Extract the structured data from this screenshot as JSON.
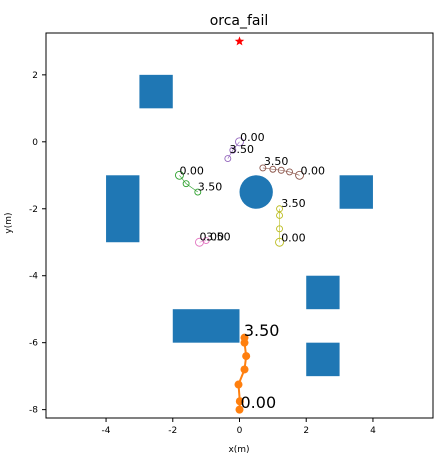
{
  "chart_data": {
    "type": "scatter",
    "title": "orca_fail",
    "xlabel": "x(m)",
    "ylabel": "y(m)",
    "xlim": [
      -5.8,
      5.8
    ],
    "ylim": [
      -8.25,
      3.25
    ],
    "x_ticks": [
      -4,
      -2,
      0,
      2,
      4
    ],
    "y_ticks": [
      2,
      0,
      -2,
      -4,
      -6,
      -8
    ],
    "grid": false,
    "goal": {
      "x": 0,
      "y": 3,
      "color": "#ff0000",
      "marker": "star"
    },
    "obstacles": [
      {
        "shape": "rect",
        "x": -3,
        "y": 1,
        "w": 1,
        "h": 1,
        "color": "#1f77b4"
      },
      {
        "shape": "rect",
        "x": -4,
        "y": -3,
        "w": 1,
        "h": 2,
        "color": "#1f77b4"
      },
      {
        "shape": "rect",
        "x": 3,
        "y": -2,
        "w": 1,
        "h": 1,
        "color": "#1f77b4"
      },
      {
        "shape": "rect",
        "x": -2,
        "y": -6,
        "w": 2,
        "h": 1,
        "color": "#1f77b4"
      },
      {
        "shape": "rect",
        "x": 2,
        "y": -5,
        "w": 1,
        "h": 1,
        "color": "#1f77b4"
      },
      {
        "shape": "rect",
        "x": 2,
        "y": -7,
        "w": 1,
        "h": 1,
        "color": "#1f77b4"
      },
      {
        "shape": "circle",
        "x": 0.5,
        "y": -1.5,
        "r": 0.5,
        "color": "#1f77b4"
      }
    ],
    "robot": {
      "color": "#ff7f0e",
      "points": [
        [
          0,
          -8
        ],
        [
          0.01,
          -7.75
        ],
        [
          -0.03,
          -7.25
        ],
        [
          0.15,
          -6.8
        ],
        [
          0.2,
          -6.4
        ],
        [
          0.15,
          -6.0
        ],
        [
          0.15,
          -5.85
        ]
      ],
      "labels": [
        {
          "text": "0.00",
          "x": 0.03,
          "y": -7.95
        },
        {
          "text": "3.50",
          "x": 0.13,
          "y": -5.8
        }
      ]
    },
    "humans": [
      {
        "color": "#9467bd",
        "points": [
          [
            0,
            0
          ],
          [
            -0.2,
            -0.25
          ],
          [
            -0.35,
            -0.5
          ]
        ],
        "labels": [
          {
            "text": "0.00",
            "x": 0.02,
            "y": 0.02
          },
          {
            "text": "3.50",
            "x": -0.3,
            "y": -0.33
          }
        ]
      },
      {
        "color": "#8c564b",
        "points": [
          [
            1.8,
            -1.0
          ],
          [
            1.5,
            -0.9
          ],
          [
            1.25,
            -0.85
          ],
          [
            1.0,
            -0.82
          ],
          [
            0.7,
            -0.78
          ]
        ],
        "labels": [
          {
            "text": "0.00",
            "x": 1.83,
            "y": -0.98
          },
          {
            "text": "3.50",
            "x": 0.73,
            "y": -0.7
          }
        ]
      },
      {
        "color": "#2ca02c",
        "points": [
          [
            -1.8,
            -1.0
          ],
          [
            -1.6,
            -1.25
          ],
          [
            -1.25,
            -1.5
          ]
        ],
        "labels": [
          {
            "text": "0.00",
            "x": -1.8,
            "y": -0.98
          },
          {
            "text": "3.50",
            "x": -1.25,
            "y": -1.45
          }
        ]
      },
      {
        "color": "#bcbd22",
        "points": [
          [
            1.2,
            -3.0
          ],
          [
            1.2,
            -2.6
          ],
          [
            1.2,
            -2.2
          ],
          [
            1.2,
            -2.0
          ]
        ],
        "labels": [
          {
            "text": "0.00",
            "x": 1.25,
            "y": -2.98
          },
          {
            "text": "3.50",
            "x": 1.25,
            "y": -1.95
          }
        ]
      },
      {
        "color": "#e377c2",
        "points": [
          [
            -1.2,
            -3.0
          ],
          [
            -1.0,
            -2.95
          ]
        ],
        "labels": [
          {
            "text": "0.00",
            "x": -1.2,
            "y": -2.95
          },
          {
            "text": "3.50",
            "x": -1.0,
            "y": -2.95
          }
        ]
      }
    ]
  }
}
